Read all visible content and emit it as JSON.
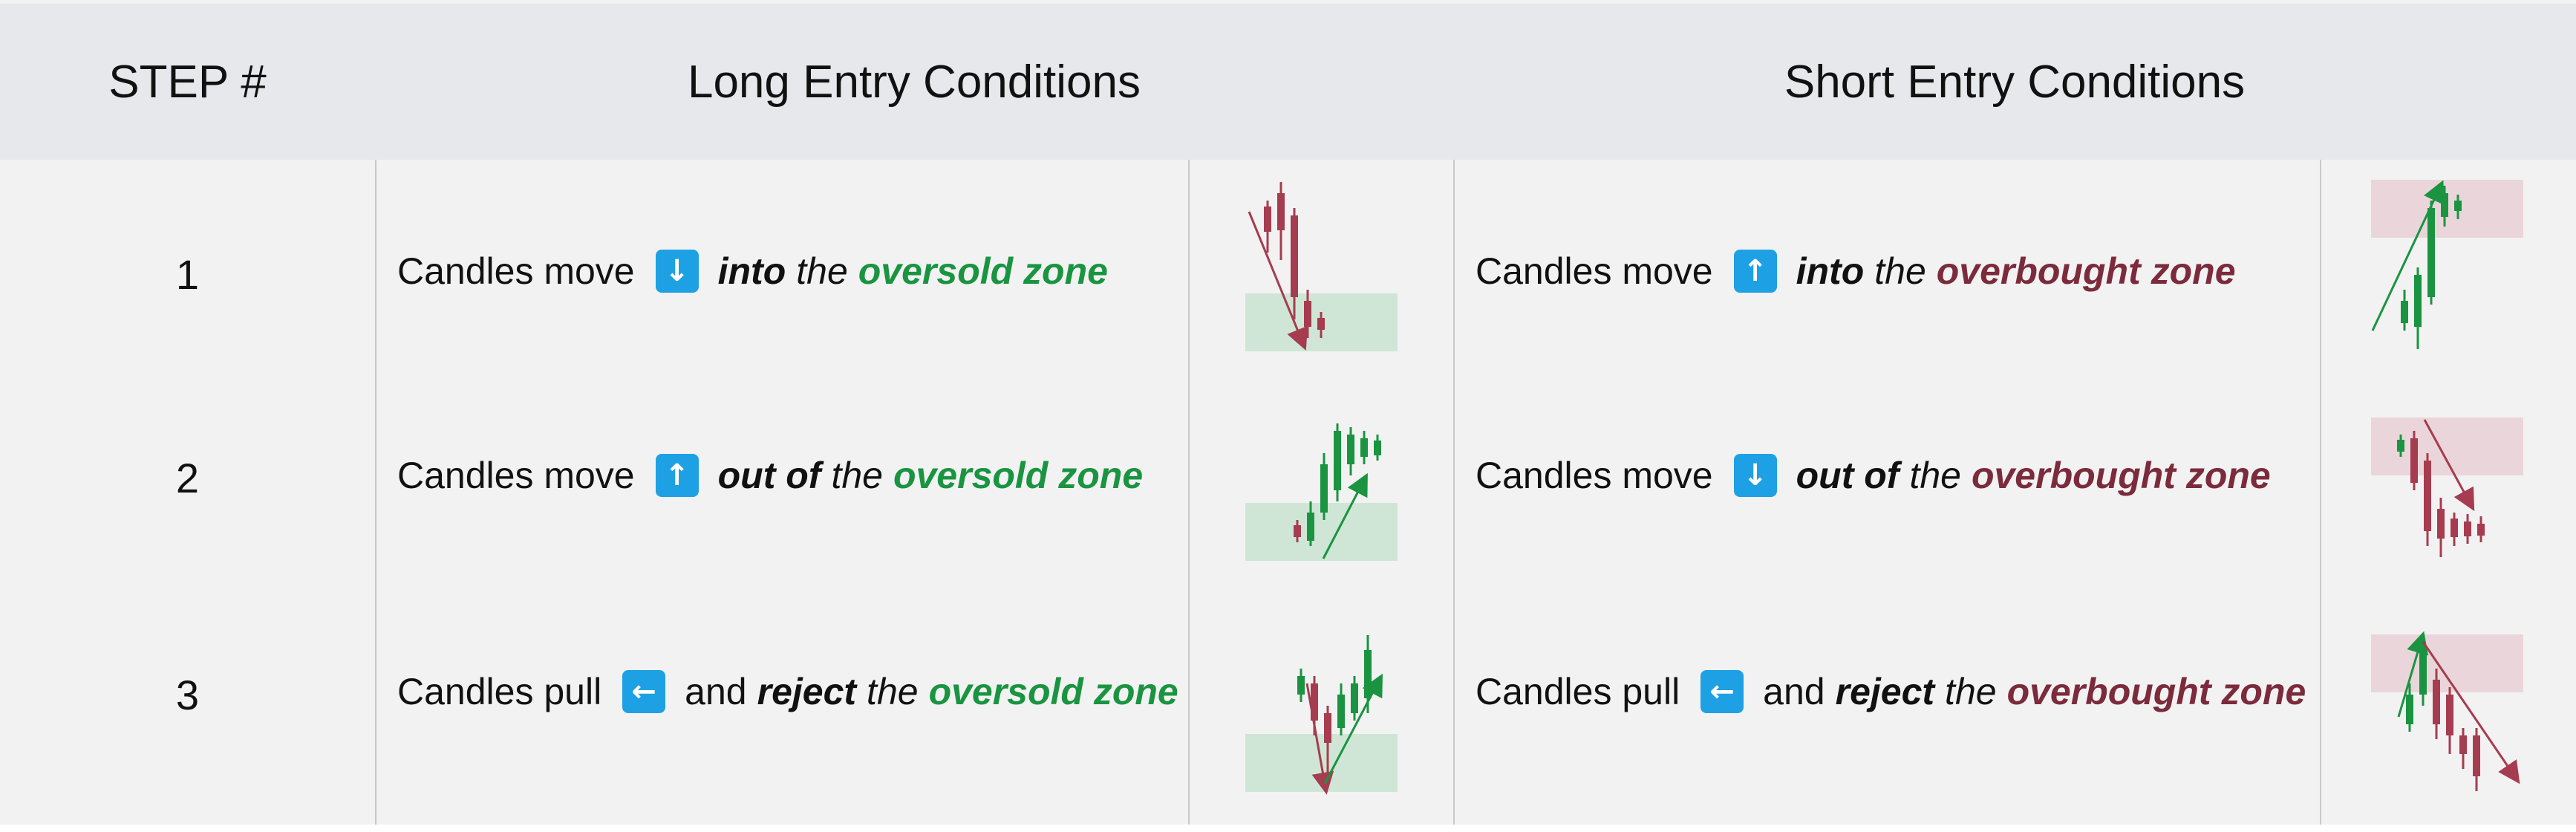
{
  "header": {
    "step": "STEP #",
    "long": "Long Entry Conditions",
    "short": "Short Entry Conditions"
  },
  "colors": {
    "header_bg": "#e7e8ec",
    "body_bg": "#f2f2f2",
    "arrow_button": "#1ea1e4",
    "bullish": "#1a9441",
    "bearish": "#a63c4f",
    "oversold_zone": "#cfe6d6",
    "overbought_zone": "#ead6da"
  },
  "rows": [
    {
      "step": "1",
      "long": {
        "pre": "Candles move",
        "icon": "down-arrow-icon",
        "glyph": "↓",
        "kw": "into",
        "the": "the",
        "zone": "oversold zone"
      },
      "short": {
        "pre": "Candles move",
        "icon": "up-arrow-icon",
        "glyph": "↑",
        "kw": "into",
        "the": "the",
        "zone": "overbought zone"
      }
    },
    {
      "step": "2",
      "long": {
        "pre": "Candles move",
        "icon": "up-arrow-icon",
        "glyph": "↑",
        "kw": "out of",
        "the": "the",
        "zone": "oversold zone"
      },
      "short": {
        "pre": "Candles move",
        "icon": "down-arrow-icon",
        "glyph": "↓",
        "kw": "out of",
        "the": "the",
        "zone": "overbought zone"
      }
    },
    {
      "step": "3",
      "long": {
        "pre": "Candles pull",
        "icon": "left-arrow-icon",
        "glyph": "←",
        "and": "and",
        "kw": "reject",
        "the": "the",
        "zone": "oversold zone"
      },
      "short": {
        "pre": "Candles pull",
        "icon": "left-arrow-icon",
        "glyph": "←",
        "and": "and",
        "kw": "reject",
        "the": "the",
        "zone": "overbought zone"
      }
    }
  ]
}
